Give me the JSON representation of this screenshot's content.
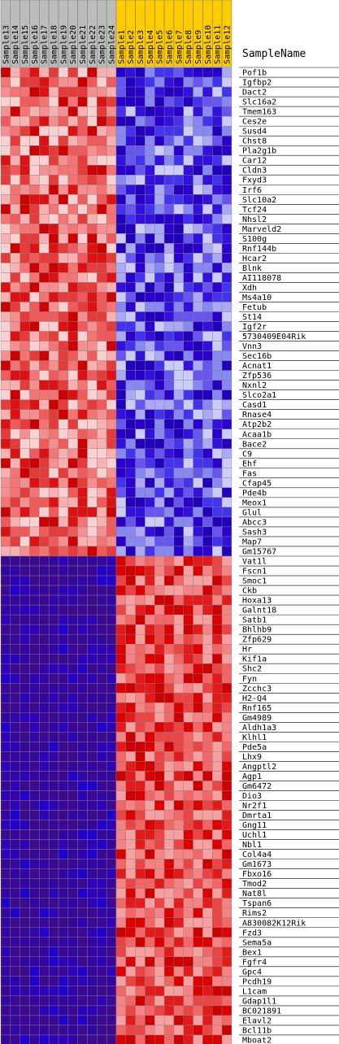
{
  "chart_data": {
    "type": "heatmap",
    "header_title": "SampleName",
    "colors": {
      "group_a_header": "#bcbcbc",
      "group_b_header": "#ffcc00",
      "grid_line": "#808080",
      "high": "#dd0000",
      "mid_high": "#f28a8a",
      "low": "#2a00cc",
      "very_low": "#3b0a8f"
    },
    "columns": [
      {
        "label": "Sample13",
        "group": "a"
      },
      {
        "label": "Sample14",
        "group": "a"
      },
      {
        "label": "Sample15",
        "group": "a"
      },
      {
        "label": "Sample16",
        "group": "a"
      },
      {
        "label": "Sample17",
        "group": "a"
      },
      {
        "label": "Sample18",
        "group": "a"
      },
      {
        "label": "Sample19",
        "group": "a"
      },
      {
        "label": "Sample20",
        "group": "a"
      },
      {
        "label": "Sample21",
        "group": "a"
      },
      {
        "label": "Sample22",
        "group": "a"
      },
      {
        "label": "Sample23",
        "group": "a"
      },
      {
        "label": "Sample24",
        "group": "a"
      },
      {
        "label": "Sample1",
        "group": "b"
      },
      {
        "label": "Sample2",
        "group": "b"
      },
      {
        "label": "Sample3",
        "group": "b"
      },
      {
        "label": "Sample4",
        "group": "b"
      },
      {
        "label": "Sample5",
        "group": "b"
      },
      {
        "label": "Sample6",
        "group": "b"
      },
      {
        "label": "Sample7",
        "group": "b"
      },
      {
        "label": "Sample8",
        "group": "b"
      },
      {
        "label": "Sample9",
        "group": "b"
      },
      {
        "label": "Sample10",
        "group": "b"
      },
      {
        "label": "Sample11",
        "group": "b"
      },
      {
        "label": "Sample12",
        "group": "b"
      }
    ],
    "rows": [
      {
        "gene": "Pof1b",
        "block": "up_in_a"
      },
      {
        "gene": "Igfbp2",
        "block": "up_in_a"
      },
      {
        "gene": "Dact2",
        "block": "up_in_a"
      },
      {
        "gene": "Slc16a2",
        "block": "up_in_a"
      },
      {
        "gene": "Tmem163",
        "block": "up_in_a"
      },
      {
        "gene": "Ces2e",
        "block": "up_in_a"
      },
      {
        "gene": "Susd4",
        "block": "up_in_a"
      },
      {
        "gene": "Chst8",
        "block": "up_in_a"
      },
      {
        "gene": "Pla2g1b",
        "block": "up_in_a"
      },
      {
        "gene": "Car12",
        "block": "up_in_a"
      },
      {
        "gene": "Cldn3",
        "block": "up_in_a"
      },
      {
        "gene": "Fxyd3",
        "block": "up_in_a"
      },
      {
        "gene": "Irf6",
        "block": "up_in_a"
      },
      {
        "gene": "Slc10a2",
        "block": "up_in_a"
      },
      {
        "gene": "Tcf24",
        "block": "up_in_a"
      },
      {
        "gene": "Nhsl2",
        "block": "up_in_a"
      },
      {
        "gene": "Marveld2",
        "block": "up_in_a"
      },
      {
        "gene": "S100g",
        "block": "up_in_a"
      },
      {
        "gene": "Rnf144b",
        "block": "up_in_a"
      },
      {
        "gene": "Hcar2",
        "block": "up_in_a"
      },
      {
        "gene": "Blnk",
        "block": "up_in_a"
      },
      {
        "gene": "AI118078",
        "block": "up_in_a"
      },
      {
        "gene": "Xdh",
        "block": "up_in_a"
      },
      {
        "gene": "Ms4a10",
        "block": "up_in_a"
      },
      {
        "gene": "Fetub",
        "block": "up_in_a"
      },
      {
        "gene": "St14",
        "block": "up_in_a"
      },
      {
        "gene": "Igf2r",
        "block": "up_in_a"
      },
      {
        "gene": "5730409E04Rik",
        "block": "up_in_a"
      },
      {
        "gene": "Vnn3",
        "block": "up_in_a"
      },
      {
        "gene": "Sec16b",
        "block": "up_in_a"
      },
      {
        "gene": "Acnat1",
        "block": "up_in_a"
      },
      {
        "gene": "Zfp536",
        "block": "up_in_a"
      },
      {
        "gene": "Nxnl2",
        "block": "up_in_a"
      },
      {
        "gene": "Slco2a1",
        "block": "up_in_a"
      },
      {
        "gene": "Casd1",
        "block": "up_in_a"
      },
      {
        "gene": "Rnase4",
        "block": "up_in_a"
      },
      {
        "gene": "Atp2b2",
        "block": "up_in_a"
      },
      {
        "gene": "Acaa1b",
        "block": "up_in_a"
      },
      {
        "gene": "Bace2",
        "block": "up_in_a"
      },
      {
        "gene": "C9",
        "block": "up_in_a"
      },
      {
        "gene": "Ehf",
        "block": "up_in_a"
      },
      {
        "gene": "Fas",
        "block": "up_in_a"
      },
      {
        "gene": "Cfap45",
        "block": "up_in_a"
      },
      {
        "gene": "Pde4b",
        "block": "up_in_a"
      },
      {
        "gene": "Meox1",
        "block": "up_in_a"
      },
      {
        "gene": "Glul",
        "block": "up_in_a"
      },
      {
        "gene": "Abcc3",
        "block": "up_in_a"
      },
      {
        "gene": "Sash3",
        "block": "up_in_a"
      },
      {
        "gene": "Map7",
        "block": "up_in_a"
      },
      {
        "gene": "Gm15767",
        "block": "up_in_a"
      },
      {
        "gene": "Vat1l",
        "block": "up_in_b"
      },
      {
        "gene": "Fscn1",
        "block": "up_in_b"
      },
      {
        "gene": "Smoc1",
        "block": "up_in_b"
      },
      {
        "gene": "Ckb",
        "block": "up_in_b"
      },
      {
        "gene": "Hoxa13",
        "block": "up_in_b"
      },
      {
        "gene": "Galnt18",
        "block": "up_in_b"
      },
      {
        "gene": "Satb1",
        "block": "up_in_b"
      },
      {
        "gene": "Bhlhb9",
        "block": "up_in_b"
      },
      {
        "gene": "Zfp629",
        "block": "up_in_b"
      },
      {
        "gene": "Hr",
        "block": "up_in_b"
      },
      {
        "gene": "Kif1a",
        "block": "up_in_b"
      },
      {
        "gene": "Shc2",
        "block": "up_in_b"
      },
      {
        "gene": "Fyn",
        "block": "up_in_b"
      },
      {
        "gene": "Zcchc3",
        "block": "up_in_b"
      },
      {
        "gene": "H2-Q4",
        "block": "up_in_b"
      },
      {
        "gene": "Rnf165",
        "block": "up_in_b"
      },
      {
        "gene": "Gm4989",
        "block": "up_in_b"
      },
      {
        "gene": "Aldh1a3",
        "block": "up_in_b"
      },
      {
        "gene": "Klhl1",
        "block": "up_in_b"
      },
      {
        "gene": "Pde5a",
        "block": "up_in_b"
      },
      {
        "gene": "Lhx9",
        "block": "up_in_b"
      },
      {
        "gene": "Angptl2",
        "block": "up_in_b"
      },
      {
        "gene": "Agp1",
        "block": "up_in_b"
      },
      {
        "gene": "Gm6472",
        "block": "up_in_b"
      },
      {
        "gene": "Dio3",
        "block": "up_in_b"
      },
      {
        "gene": "Nr2f1",
        "block": "up_in_b"
      },
      {
        "gene": "Dmrta1",
        "block": "up_in_b"
      },
      {
        "gene": "Gng11",
        "block": "up_in_b"
      },
      {
        "gene": "Uchl1",
        "block": "up_in_b"
      },
      {
        "gene": "Nbl1",
        "block": "up_in_b"
      },
      {
        "gene": "Col4a4",
        "block": "up_in_b"
      },
      {
        "gene": "Gm1673",
        "block": "up_in_b"
      },
      {
        "gene": "Fbxo16",
        "block": "up_in_b"
      },
      {
        "gene": "Tmod2",
        "block": "up_in_b"
      },
      {
        "gene": "Nat8l",
        "block": "up_in_b"
      },
      {
        "gene": "Tspan6",
        "block": "up_in_b"
      },
      {
        "gene": "Rims2",
        "block": "up_in_b"
      },
      {
        "gene": "A830082K12Rik",
        "block": "up_in_b"
      },
      {
        "gene": "Fzd3",
        "block": "up_in_b"
      },
      {
        "gene": "Sema5a",
        "block": "up_in_b"
      },
      {
        "gene": "Bex1",
        "block": "up_in_b"
      },
      {
        "gene": "Fgfr4",
        "block": "up_in_b"
      },
      {
        "gene": "Gpc4",
        "block": "up_in_b"
      },
      {
        "gene": "Pcdh19",
        "block": "up_in_b"
      },
      {
        "gene": "L1cam",
        "block": "up_in_b"
      },
      {
        "gene": "Gdap1l1",
        "block": "up_in_b"
      },
      {
        "gene": "BC021891",
        "block": "up_in_b"
      },
      {
        "gene": "Elavl2",
        "block": "up_in_b"
      },
      {
        "gene": "Bcl11b",
        "block": "up_in_b"
      },
      {
        "gene": "Mboat2",
        "block": "up_in_b"
      }
    ]
  }
}
